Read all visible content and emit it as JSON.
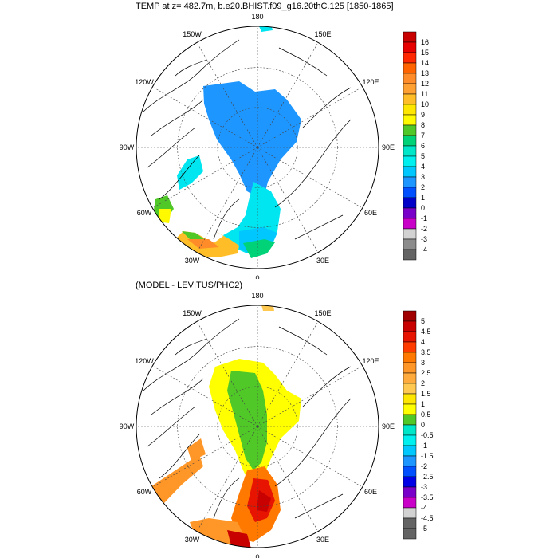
{
  "top_panel": {
    "title": "TEMP at z= 482.7m, b.e20.BHIST.f09_g16.20thC.125 [1850-1865]",
    "lon_labels": [
      "180",
      "150E",
      "120E",
      "90E",
      "60E",
      "30E",
      "0",
      "30W",
      "60W",
      "90W",
      "120W",
      "150W"
    ],
    "colorbar": {
      "labels": [
        "16",
        "15",
        "14",
        "13",
        "12",
        "11",
        "10",
        "9",
        "8",
        "7",
        "6",
        "5",
        "4",
        "3",
        "2",
        "1",
        "0",
        "-1",
        "-2",
        "-3",
        "-4"
      ],
      "colors": [
        "#c80000",
        "#e60000",
        "#ff2800",
        "#ff6400",
        "#ff8c28",
        "#ffa032",
        "#ffbe28",
        "#ffe600",
        "#fffa00",
        "#50c828",
        "#00d278",
        "#00e6c8",
        "#00f0f0",
        "#00c8ff",
        "#1e96ff",
        "#0050ff",
        "#0000c8",
        "#7800c8",
        "#c800c8",
        "#d2d2d2",
        "#8c8c8c",
        "#646464"
      ]
    }
  },
  "bottom_panel": {
    "title": "(MODEL - LEVITUS/PHC2)",
    "lon_labels": [
      "180",
      "150E",
      "120E",
      "90E",
      "60E",
      "30E",
      "0",
      "30W",
      "60W",
      "90W",
      "120W",
      "150W"
    ],
    "colorbar": {
      "labels": [
        "5",
        "4.5",
        "4",
        "3.5",
        "3",
        "2.5",
        "2",
        "1.5",
        "1",
        "0.5",
        "0",
        "-0.5",
        "-1",
        "-1.5",
        "-2",
        "-2.5",
        "-3",
        "-3.5",
        "-4",
        "-4.5",
        "-5"
      ],
      "colors": [
        "#a00000",
        "#c80000",
        "#e61400",
        "#ff3c00",
        "#ff7800",
        "#ff9628",
        "#ffaa3c",
        "#ffc850",
        "#ffe600",
        "#ffff00",
        "#50c828",
        "#00e6c8",
        "#00f0f0",
        "#00c8ff",
        "#1e96ff",
        "#0050ff",
        "#0000e6",
        "#7800c8",
        "#c800c8",
        "#d2d2d2",
        "#646464",
        "#646464"
      ]
    }
  }
}
